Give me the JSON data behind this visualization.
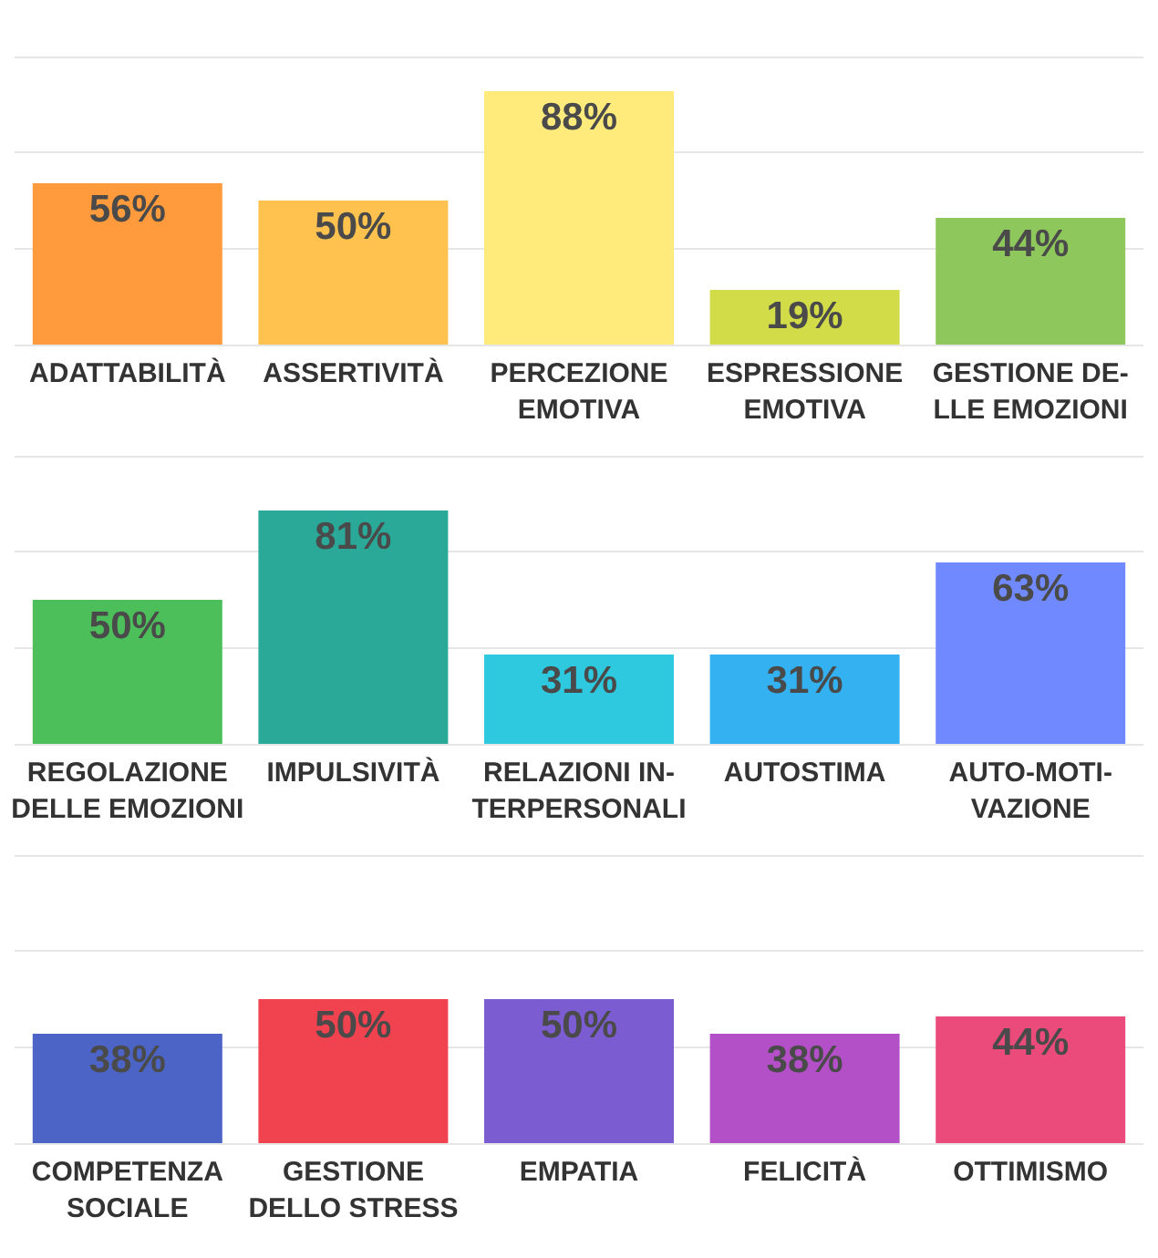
{
  "chart_data": [
    {
      "type": "bar",
      "categories": [
        "ADATTABILITÀ",
        "ASSERTIVITÀ",
        "PERCEZIONE\nEMOTIVA",
        "ESPRESSIONE\nEMOTIVA",
        "GESTIONE DE-\nLLE EMOZIONI"
      ],
      "values": [
        56,
        50,
        88,
        19,
        44
      ],
      "colors": [
        "#ff9b3d",
        "#ffc24f",
        "#ffeb7c",
        "#d2dc48",
        "#8ec85c"
      ],
      "value_labels": [
        "56%",
        "50%",
        "88%",
        "19%",
        "44%"
      ],
      "ylim": [
        0,
        100
      ],
      "yticks": [
        {
          "value": 0,
          "label": null
        },
        {
          "value": 33.3,
          "label": null
        },
        {
          "value": 66.7,
          "label": null
        },
        {
          "value": 100,
          "label": null
        }
      ],
      "grid": "y",
      "tick_labels": "x"
    },
    {
      "type": "bar",
      "categories": [
        "REGOLAZIONE\nDELLE EMOZIONI",
        "IMPULSIVITÀ",
        "RELAZIONI IN-\nTERPERSONALI",
        "AUTOSTIMA",
        "AUTO-MOTI-\nVAZIONE"
      ],
      "values": [
        50,
        81,
        31,
        31,
        63
      ],
      "colors": [
        "#4cbf5a",
        "#2aa998",
        "#2fc9df",
        "#33b1f1",
        "#7089ff"
      ],
      "value_labels": [
        "50%",
        "81%",
        "31%",
        "31%",
        "63%"
      ],
      "ylim": [
        0,
        100
      ],
      "yticks": [
        {
          "value": 0,
          "label": null
        },
        {
          "value": 33.3,
          "label": null
        },
        {
          "value": 66.7,
          "label": null
        },
        {
          "value": 100,
          "label": null
        }
      ],
      "grid": "y",
      "tick_labels": "x"
    },
    {
      "type": "bar",
      "categories": [
        "COMPETENZA\nSOCIALE",
        "GESTIONE\nDELLO STRESS",
        "EMPATIA",
        "FELICITÀ",
        "OTTIMISMO"
      ],
      "values": [
        38,
        50,
        50,
        38,
        44
      ],
      "colors": [
        "#4b64c5",
        "#f0434f",
        "#7b5cd1",
        "#b350c8",
        "#eb4b7b"
      ],
      "value_labels": [
        "38%",
        "50%",
        "50%",
        "38%",
        "44%"
      ],
      "ylim": [
        0,
        100
      ],
      "yticks": [
        {
          "value": 0,
          "label": null
        },
        {
          "value": 33.3,
          "label": null
        },
        {
          "value": 66.7,
          "label": null
        },
        {
          "value": 100,
          "label": null
        }
      ],
      "grid": "y",
      "tick_labels": "x"
    }
  ]
}
